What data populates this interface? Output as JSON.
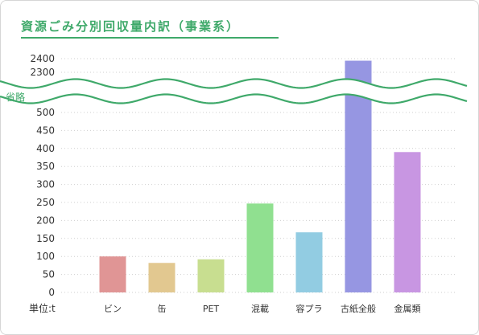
{
  "chart_data": {
    "type": "bar",
    "title": "資源ごみ分別回収量内訳（事業系）",
    "unit_label": "単位:t",
    "axis_break_label": "省略",
    "categories": [
      "ビン",
      "缶",
      "PET",
      "混載",
      "容プラ",
      "古紙全般",
      "金属類"
    ],
    "values": [
      100,
      82,
      92,
      247,
      167,
      2385,
      390
    ],
    "colors": [
      "#e09595",
      "#e2c890",
      "#c8de90",
      "#90e090",
      "#92cce2",
      "#9696e2",
      "#c896e2"
    ],
    "y_ticks_lower": [
      0,
      50,
      100,
      150,
      200,
      250,
      300,
      350,
      400,
      450,
      500
    ],
    "y_ticks_upper": [
      2300,
      2400
    ],
    "ylim_lower": [
      0,
      500
    ],
    "ylim_upper": [
      2300,
      2400
    ],
    "grid": true,
    "axis_break": true
  }
}
